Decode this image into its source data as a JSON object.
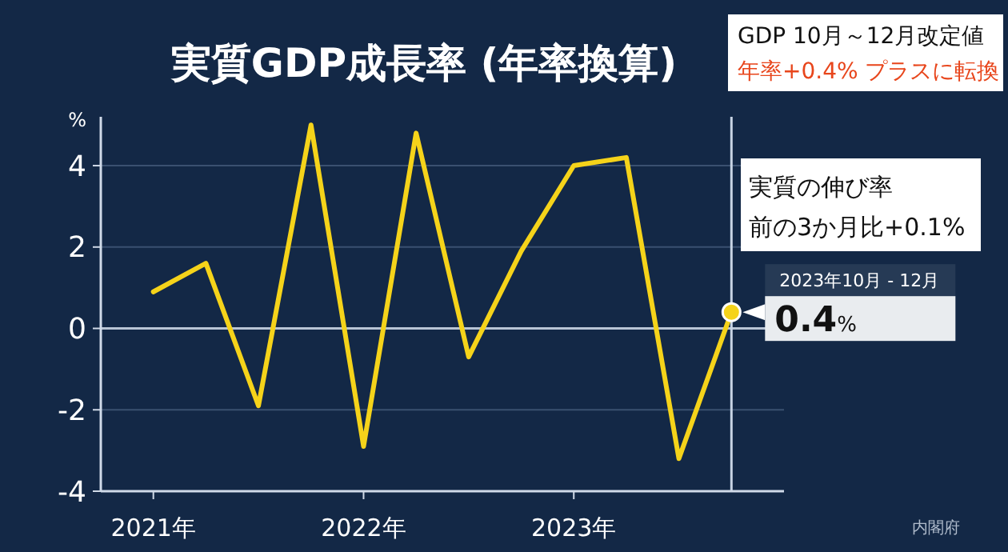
{
  "chart_data": {
    "type": "line",
    "title": "実質GDP成長率 (年率換算)",
    "ylabel": "%",
    "x": [
      2021.0,
      2021.25,
      2021.5,
      2021.75,
      2022.0,
      2022.25,
      2022.5,
      2022.75,
      2023.0,
      2023.25,
      2023.5,
      2023.75
    ],
    "series": [
      {
        "color": "#f5d31a",
        "values": [
          0.9,
          1.6,
          -1.9,
          5.0,
          -2.9,
          4.8,
          -0.7,
          1.9,
          4.0,
          4.2,
          -3.2,
          0.4
        ],
        "value_labels": [
          null,
          null,
          null,
          null,
          null,
          null,
          null,
          null,
          null,
          null,
          null,
          "0.4%"
        ]
      }
    ],
    "xlim": [
      2020.75,
      2024.0
    ],
    "xticks": [
      {
        "value": 2021,
        "label": "2021年"
      },
      {
        "value": 2022,
        "label": "2022年"
      },
      {
        "value": 2023,
        "label": "2023年"
      }
    ],
    "ylim": [
      -4,
      5.2
    ],
    "yticks": [
      -4,
      -2,
      0,
      2,
      4
    ],
    "grid": "y",
    "marker": "none",
    "line_style": "solid",
    "ref_lines": [
      {
        "axis": "x",
        "value": 2023.75,
        "color": "#c8d4e4"
      }
    ],
    "annotations": [
      "GDP 10月～12月改定値",
      "年率+0.4% プラスに転換",
      "実質の伸び率",
      "前の3か月比+0.1%",
      {
        "text": "2023年10月 - 12月",
        "x": 2023.75,
        "y": 0.4
      },
      "内閣府"
    ]
  }
}
